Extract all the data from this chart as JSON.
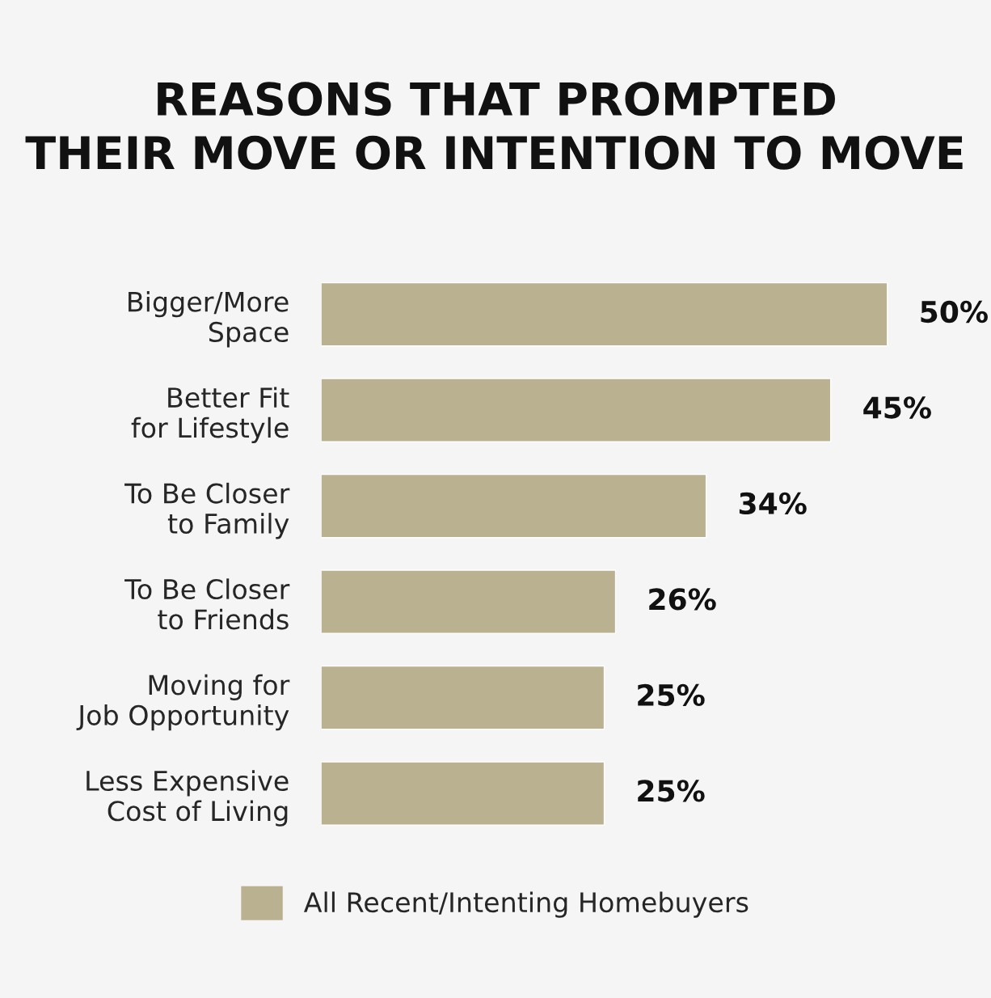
{
  "chart_data": {
    "type": "bar",
    "orientation": "horizontal",
    "title": "REASONS THAT PROMPTED\nTHEIR MOVE OR INTENTION TO MOVE",
    "categories": [
      "Bigger/More\nSpace",
      "Better Fit\nfor Lifestyle",
      "To Be Closer\nto Family",
      "To Be Closer\nto Friends",
      "Moving for\nJob Opportunity",
      "Less Expensive\nCost of Living"
    ],
    "series": [
      {
        "name": "All Recent/Intenting Homebuyers",
        "color": "#bab191",
        "values": [
          50,
          45,
          34,
          26,
          25,
          25
        ],
        "value_labels": [
          "50%",
          "45%",
          "34%",
          "26%",
          "25%",
          "25%"
        ]
      }
    ],
    "legend": "bottom",
    "grid": false
  }
}
